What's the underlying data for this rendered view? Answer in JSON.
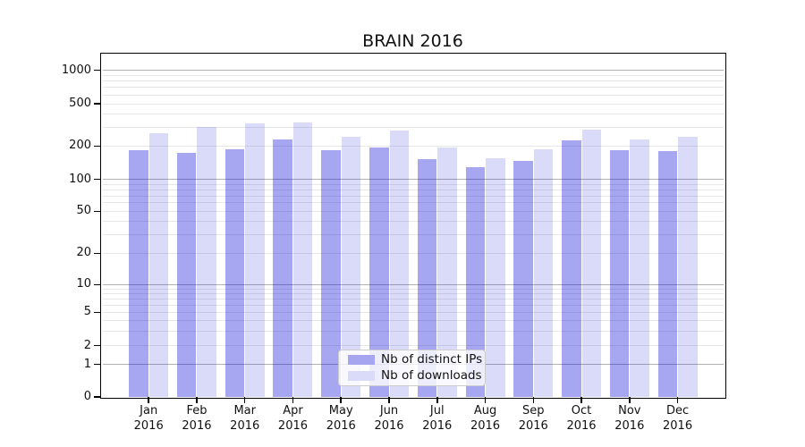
{
  "title": "BRAIN 2016",
  "legend": {
    "items": [
      {
        "label": "Nb of distinct IPs",
        "color": "#a6a6f0"
      },
      {
        "label": "Nb of downloads",
        "color": "#dadaf9"
      }
    ]
  },
  "colors": {
    "bar_distinct_ips": "rgba(0,0,215,0.35)",
    "bar_downloads": "rgba(0,0,215,0.145)",
    "bar_distinct_ips_solid": "#a6a6f0",
    "bar_downloads_solid": "#dadaf9",
    "grid_major": "#b2b2b2",
    "grid_minor": "#e7e7e7",
    "axis": "#000000"
  },
  "chart_data": {
    "type": "bar",
    "title": "BRAIN 2016",
    "categories": [
      "Jan 2016",
      "Feb 2016",
      "Mar 2016",
      "Apr 2016",
      "May 2016",
      "Jun 2016",
      "Jul 2016",
      "Aug 2016",
      "Sep 2016",
      "Oct 2016",
      "Nov 2016",
      "Dec 2016"
    ],
    "series": [
      {
        "name": "Nb of distinct IPs",
        "values": [
          182,
          173,
          188,
          230,
          184,
          194,
          153,
          129,
          147,
          226,
          184,
          181
        ]
      },
      {
        "name": "Nb of downloads",
        "values": [
          265,
          303,
          325,
          331,
          243,
          280,
          194,
          154,
          186,
          285,
          232,
          244
        ]
      }
    ],
    "xlabel": "",
    "ylabel": "",
    "yscale": "symlog",
    "yticks": [
      0,
      1,
      2,
      5,
      10,
      20,
      50,
      100,
      200,
      500,
      1000
    ],
    "ylim": [
      0,
      1400
    ],
    "grid": true,
    "legend_position": "lower center"
  }
}
